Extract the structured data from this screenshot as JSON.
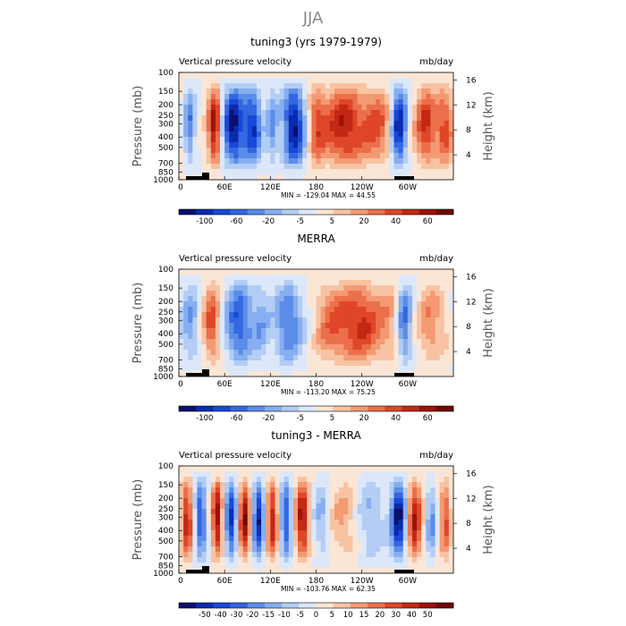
{
  "figure": {
    "title": "JJA"
  },
  "chart_data": [
    {
      "type": "heatmap",
      "title": "tuning3 (yrs 1979-1979)",
      "left_label": "Vertical pressure velocity",
      "right_label": "mb/day",
      "ylabel": "Pressure (mb)",
      "ylabel_right": "Height (km)",
      "x_ticks": [
        "0",
        "60E",
        "120E",
        "180",
        "120W",
        "60W"
      ],
      "y_ticks": [
        "100",
        "150",
        "200",
        "250",
        "300",
        "400",
        "500",
        "700",
        "850",
        "1000"
      ],
      "height_ticks": [
        "16",
        "12",
        "8",
        "4"
      ],
      "stats": "MIN = -129.04   MAX =  44.55",
      "colorbar_labels": [
        "-100",
        "-60",
        "-20",
        "-5",
        "5",
        "20",
        "40",
        "60"
      ],
      "variant": "model"
    },
    {
      "type": "heatmap",
      "title": "MERRA",
      "left_label": "Vertical pressure velocity",
      "right_label": "mb/day",
      "ylabel": "Pressure (mb)",
      "ylabel_right": "Height (km)",
      "x_ticks": [
        "0",
        "60E",
        "120E",
        "180",
        "120W",
        "60W"
      ],
      "y_ticks": [
        "100",
        "150",
        "200",
        "250",
        "300",
        "400",
        "500",
        "700",
        "850",
        "1000"
      ],
      "height_ticks": [
        "16",
        "12",
        "8",
        "4"
      ],
      "stats": "MIN = -113.20   MAX =  75.25",
      "colorbar_labels": [
        "-100",
        "-60",
        "-20",
        "-5",
        "5",
        "20",
        "40",
        "60"
      ],
      "variant": "obs"
    },
    {
      "type": "heatmap",
      "title": "tuning3 - MERRA",
      "left_label": "Vertical pressure velocity",
      "right_label": "mb/day",
      "ylabel": "Pressure (mb)",
      "ylabel_right": "Height (km)",
      "x_ticks": [
        "0",
        "60E",
        "120E",
        "180",
        "120W",
        "60W"
      ],
      "y_ticks": [
        "100",
        "150",
        "200",
        "250",
        "300",
        "400",
        "500",
        "700",
        "850",
        "1000"
      ],
      "height_ticks": [
        "16",
        "12",
        "8",
        "4"
      ],
      "stats": "MIN = -103.76   MAX =  62.35",
      "colorbar_labels": [
        "-50",
        "-40",
        "-30",
        "-20",
        "-15",
        "-10",
        "-5",
        "0",
        "5",
        "10",
        "15",
        "20",
        "30",
        "40",
        "50"
      ],
      "variant": "diff"
    }
  ],
  "colors": {
    "ramp": [
      "#08106e",
      "#0a2bb0",
      "#1848d8",
      "#3366e0",
      "#5b8ce8",
      "#86aef0",
      "#b3cdf5",
      "#dce8fa",
      "#fbe6d6",
      "#f8c3a2",
      "#f39a73",
      "#ec6f4b",
      "#df4628",
      "#c32815",
      "#9c1208",
      "#6e0704"
    ]
  }
}
